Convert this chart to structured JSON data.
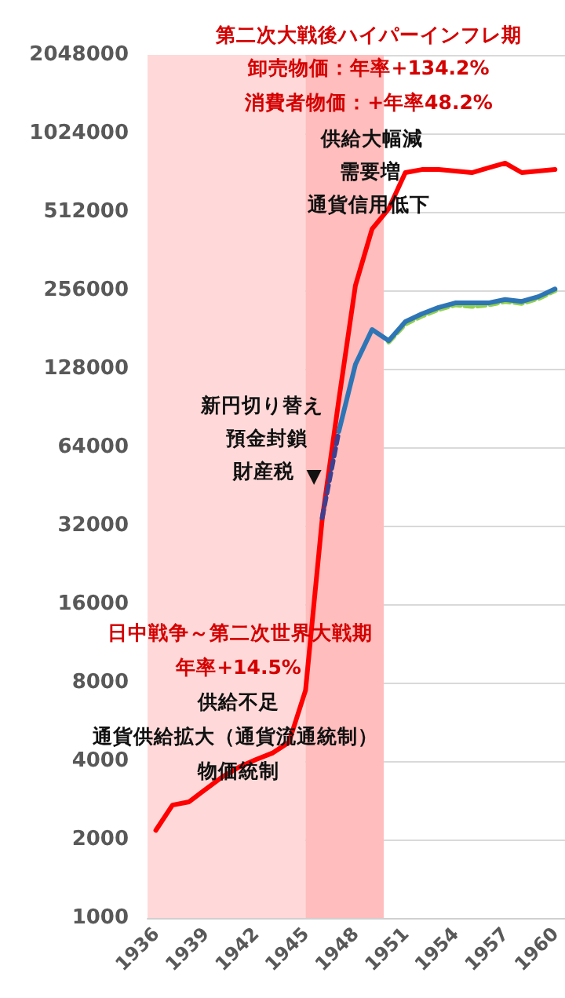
{
  "chart_data": {
    "type": "line",
    "x": [
      1936,
      1937,
      1938,
      1939,
      1940,
      1941,
      1942,
      1943,
      1944,
      1945,
      1946,
      1947,
      1948,
      1949,
      1950,
      1951,
      1952,
      1953,
      1954,
      1955,
      1956,
      1957,
      1958,
      1959,
      1960
    ],
    "series": [
      {
        "color": "#ff0000",
        "values": [
          2170,
          2710,
          2790,
          3120,
          3480,
          3790,
          4050,
          4290,
          4720,
          7470,
          33800,
          97000,
          267000,
          440000,
          526000,
          724000,
          744000,
          744000,
          734000,
          724000,
          755000,
          787000,
          724000,
          734000,
          744000
        ]
      },
      {
        "color": "#92d050",
        "line_style": "dashed",
        "values": [
          null,
          null,
          null,
          null,
          null,
          null,
          null,
          null,
          null,
          null,
          null,
          null,
          null,
          null,
          162000,
          190000,
          204000,
          216000,
          225000,
          222000,
          225000,
          232000,
          228000,
          238000,
          255000
        ]
      },
      {
        "color": "#2e75b6",
        "values": [
          null,
          null,
          null,
          null,
          null,
          null,
          null,
          null,
          null,
          null,
          null,
          73500,
          133000,
          181000,
          164000,
          194000,
          208000,
          220000,
          229000,
          229000,
          229000,
          236000,
          232000,
          242000,
          259000
        ]
      },
      {
        "color": "#3f3f8f",
        "line_style": "dashed",
        "values": [
          null,
          null,
          null,
          null,
          null,
          null,
          null,
          null,
          null,
          null,
          34300,
          73500,
          null,
          null,
          null,
          null,
          null,
          null,
          null,
          null,
          null,
          null,
          null,
          null,
          null
        ]
      }
    ],
    "xlim": [
      1935.5,
      1960.6
    ],
    "xticks": [
      1936,
      1939,
      1942,
      1945,
      1948,
      1951,
      1954,
      1957,
      1960
    ],
    "log": true,
    "ylim": [
      1000,
      2048000
    ],
    "yticks": [
      1000,
      2000,
      4000,
      8000,
      16000,
      32000,
      64000,
      128000,
      256000,
      512000,
      1024000,
      2048000
    ],
    "grid": "y",
    "marker": "none",
    "bands": [
      {
        "axis": "x",
        "from": 1935.5,
        "to": 1945,
        "color": "#ffd9d9"
      },
      {
        "axis": "x",
        "from": 1945,
        "to": 1949.7,
        "color": "#ffbdbd"
      }
    ],
    "annotations": [
      "第二次大戦後ハイパーインフレ期",
      "卸売物価：年率+134.2%",
      "消費者物価：+年率48.2%",
      "供給大幅減",
      "需要増",
      "通貨信用低下",
      "新円切り替え",
      "預金封鎖",
      "財産税",
      "▼",
      "日中戦争～第二次世界大戦期",
      "年率+14.5%",
      "供給不足",
      "通貨供給拡大（通貨流通統制）",
      "物価統制"
    ]
  }
}
